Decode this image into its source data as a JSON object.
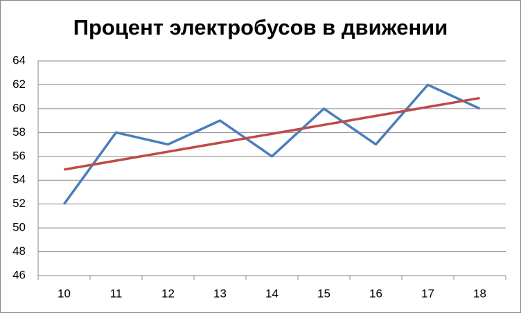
{
  "chart_data": {
    "type": "line",
    "title": "Процент электробусов в движении",
    "categories": [
      10,
      11,
      12,
      13,
      14,
      15,
      16,
      17,
      18
    ],
    "series": [
      {
        "color": "#4a7ebb",
        "values": [
          52,
          58,
          57,
          59,
          56,
          60,
          57,
          62,
          60
        ]
      },
      {
        "color": "#be4b48",
        "values": [
          54.89,
          55.64,
          56.39,
          57.14,
          57.89,
          58.64,
          59.39,
          60.14,
          60.89
        ]
      }
    ],
    "ylim": [
      46,
      64
    ],
    "yticks": [
      46,
      48,
      50,
      52,
      54,
      56,
      58,
      60,
      62,
      64
    ],
    "grid": true
  }
}
